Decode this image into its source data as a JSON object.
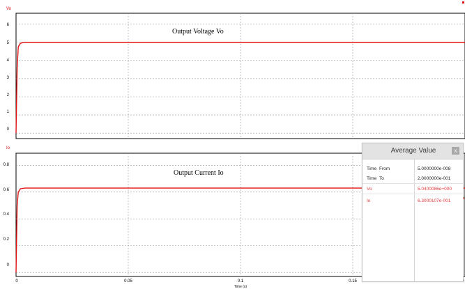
{
  "colors": {
    "trace": "#e01010",
    "grid": "#9a9a9a",
    "axis": "#000000",
    "series_label": "#e01010",
    "panel_header": "#e3e3e3",
    "value_red": "#e23a3a"
  },
  "plots": [
    {
      "series_label": "Vo",
      "annotation": "Output Voltage Vo",
      "y_ticks": [
        "6",
        "5",
        "4",
        "3",
        "2",
        "1",
        "0"
      ]
    },
    {
      "series_label": "Io",
      "annotation": "Output Current Io",
      "y_ticks": [
        "0.8",
        "0.6",
        "0.4",
        "0.2",
        "0"
      ]
    }
  ],
  "x_ticks": [
    "0",
    "0.05",
    "0.1",
    "0.15",
    "0"
  ],
  "x_label": "Time (s)",
  "chart_data": [
    {
      "type": "line",
      "series": [
        {
          "name": "Vo",
          "x": [
            0,
            0.0005,
            0.001,
            0.002,
            0.004,
            0.2
          ],
          "values": [
            0,
            3.6,
            4.75,
            4.95,
            5.0,
            5.0
          ]
        }
      ],
      "ylim": [
        -0.3,
        6.6
      ],
      "xlim": [
        0,
        0.2
      ],
      "grid": true
    },
    {
      "type": "line",
      "series": [
        {
          "name": "Io",
          "x": [
            0,
            0.0005,
            0.001,
            0.002,
            0.004,
            0.2
          ],
          "values": [
            0,
            0.5,
            0.6,
            0.625,
            0.63,
            0.63
          ]
        }
      ],
      "ylim": [
        -0.03,
        0.89
      ],
      "xlim": [
        0,
        0.2
      ],
      "grid": true
    }
  ],
  "average_panel": {
    "title": "Average Value",
    "close_label": "x",
    "rows": [
      {
        "label": "Time",
        "sub": "From",
        "value": "5.0000000e-008"
      },
      {
        "label": "Time",
        "sub": "To",
        "value": "2.0000000e-001"
      },
      {
        "label": "Vo",
        "sub": "",
        "value": "5.0400086e+000"
      },
      {
        "label": "Io",
        "sub": "",
        "value": "6.3000107e-001"
      }
    ]
  }
}
